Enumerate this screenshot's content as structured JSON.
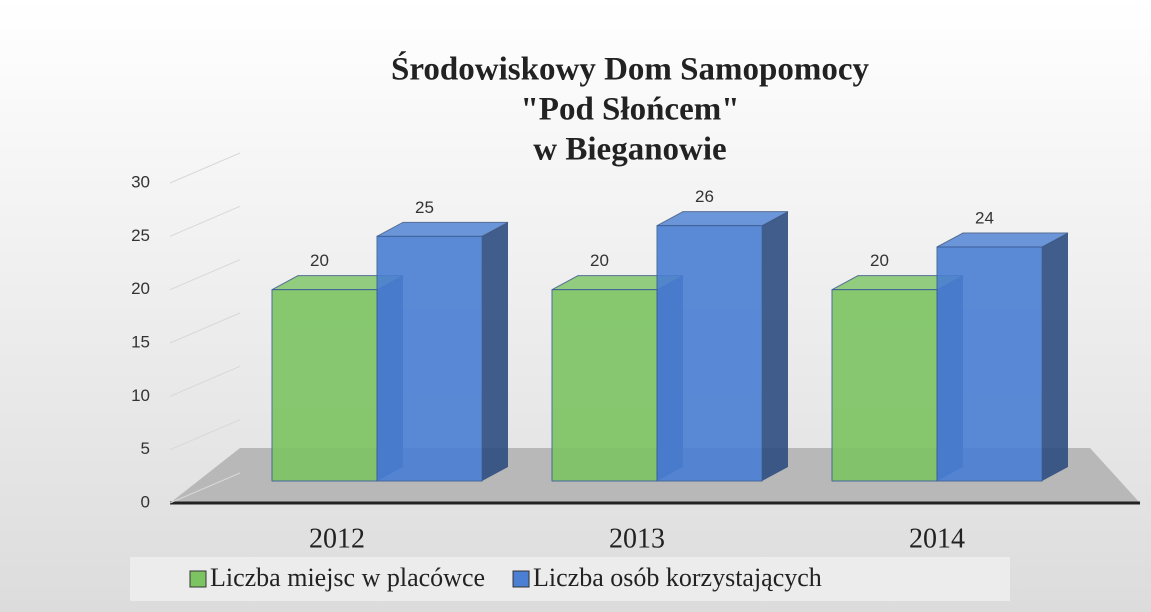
{
  "chart_data": {
    "type": "bar",
    "title": [
      "Środowiskowy Dom Samopomocy",
      "\"Pod Słońcem\"",
      "w Bieganowie"
    ],
    "categories": [
      "2012",
      "2013",
      "2014"
    ],
    "series": [
      {
        "name": "Liczba miejsc w placówce",
        "color": "#7cc462",
        "values": [
          20,
          20,
          20
        ]
      },
      {
        "name": "Liczba osób korzystających",
        "color": "#4a7fd4",
        "values": [
          25,
          26,
          24
        ]
      }
    ],
    "ylim": [
      0,
      30
    ],
    "yticks": [
      0,
      5,
      10,
      15,
      20,
      25,
      30
    ],
    "grid": true,
    "legend": "bottom"
  }
}
